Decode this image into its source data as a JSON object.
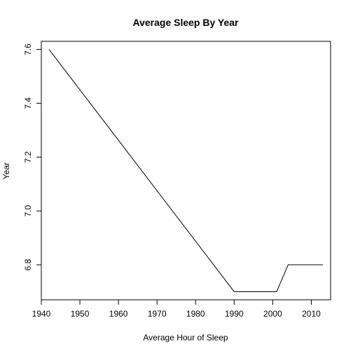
{
  "chart_data": {
    "type": "line",
    "title": "Average Sleep By Year",
    "xlabel": "Average Hour of Sleep",
    "ylabel": "Year",
    "xlim": [
      1940,
      2015
    ],
    "ylim": [
      6.67,
      7.63
    ],
    "x_ticks": [
      1940,
      1950,
      1960,
      1970,
      1980,
      1990,
      2000,
      2010
    ],
    "x_tick_labels": [
      "1940",
      "1950",
      "1960",
      "1970",
      "1980",
      "1990",
      "2000",
      "2010"
    ],
    "y_ticks": [
      6.8,
      7.0,
      7.2,
      7.4,
      7.6
    ],
    "y_tick_labels": [
      "6.8",
      "7.0",
      "7.2",
      "7.4",
      "7.6"
    ],
    "grid": false,
    "series": [
      {
        "color": "#000000",
        "x": [
          1942,
          1990,
          2001,
          2004,
          2013
        ],
        "y": [
          7.6,
          6.7,
          6.7,
          6.8,
          6.8
        ]
      }
    ]
  }
}
